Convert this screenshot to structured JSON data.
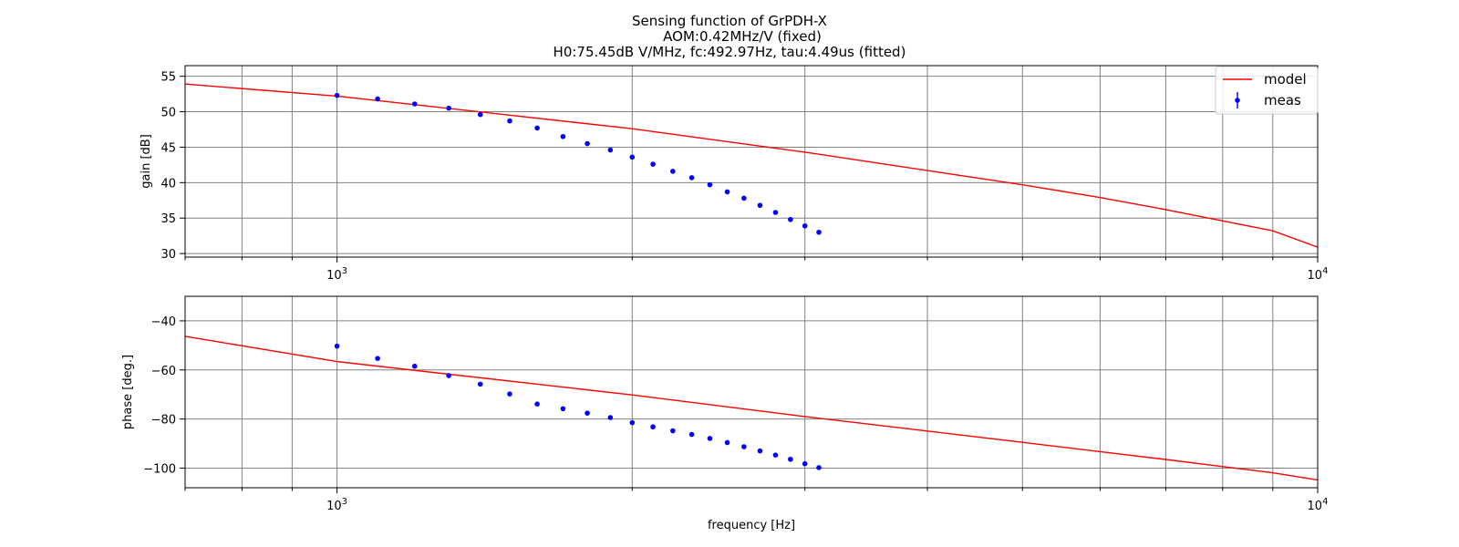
{
  "chart_data": {
    "type": "line",
    "title": "Sensing function of GrPDH-X",
    "subtitle": [
      "AOM:0.42MHz/V (fixed)",
      "H0:75.45dB V/MHz,  fc:492.97Hz,  tau:4.49us (fitted)"
    ],
    "xlabel": "frequency [Hz]",
    "xscale": "log",
    "xlim": [
      700,
      10000
    ],
    "x_tick_labels": [
      {
        "value": 1000,
        "base": "10",
        "exp": "3"
      },
      {
        "value": 10000,
        "base": "10",
        "exp": "4"
      }
    ],
    "grid": true,
    "legend": {
      "placement": "top-right",
      "entries": [
        "model",
        "meas"
      ]
    },
    "model_params": {
      "H0_dB": 75.45,
      "fc_Hz": 492.97,
      "tau_us": 4.49
    },
    "meas_x": [
      1000,
      1100,
      1200,
      1300,
      1400,
      1500,
      1600,
      1700,
      1800,
      1900,
      2000,
      2100,
      2200,
      2300,
      2400,
      2500,
      2600,
      2700,
      2800,
      2900,
      3000,
      3100
    ],
    "subplots": [
      {
        "ylabel": "gain [dB]",
        "ylim": [
          29.5,
          56.5
        ],
        "yticks": [
          30,
          35,
          40,
          45,
          50,
          55
        ],
        "series": [
          {
            "name": "model",
            "color": "#ff0000",
            "kind": "line",
            "x": [
              700,
              1000,
              2000,
              3000,
              4000,
              5000,
              6000,
              7000,
              8000,
              9000,
              10000
            ],
            "y": [
              53.9,
              52.2,
              47.6,
              44.3,
              41.7,
              39.7,
              37.9,
              36.2,
              34.6,
              33.2,
              30.9
            ]
          },
          {
            "name": "meas",
            "color": "#0000ff",
            "kind": "points",
            "y": [
              52.3,
              51.8,
              51.1,
              50.5,
              49.6,
              48.7,
              47.7,
              46.5,
              45.5,
              44.6,
              43.6,
              42.6,
              41.6,
              40.7,
              39.7,
              38.7,
              37.8,
              36.8,
              35.8,
              34.8,
              33.9,
              33.0
            ]
          }
        ]
      },
      {
        "ylabel": "phase [deg.]",
        "ylim": [
          -108,
          -30
        ],
        "yticks": [
          -40,
          -60,
          -80,
          -100
        ],
        "series": [
          {
            "name": "model",
            "color": "#ff0000",
            "kind": "line",
            "x": [
              700,
              1000,
              2000,
              3000,
              4000,
              5000,
              6000,
              7000,
              8000,
              9000,
              10000
            ],
            "y": [
              -46.3,
              -56.6,
              -70.2,
              -79.0,
              -84.9,
              -89.5,
              -93.3,
              -96.5,
              -99.4,
              -101.9,
              -104.8
            ]
          },
          {
            "name": "meas",
            "color": "#0000ff",
            "kind": "points",
            "y": [
              -50.3,
              -55.3,
              -58.5,
              -62.3,
              -65.8,
              -69.8,
              -73.9,
              -75.8,
              -77.6,
              -79.4,
              -81.5,
              -83.2,
              -84.8,
              -86.3,
              -87.9,
              -89.6,
              -91.3,
              -93.0,
              -94.7,
              -96.4,
              -98.2,
              -99.8
            ]
          }
        ]
      }
    ]
  }
}
